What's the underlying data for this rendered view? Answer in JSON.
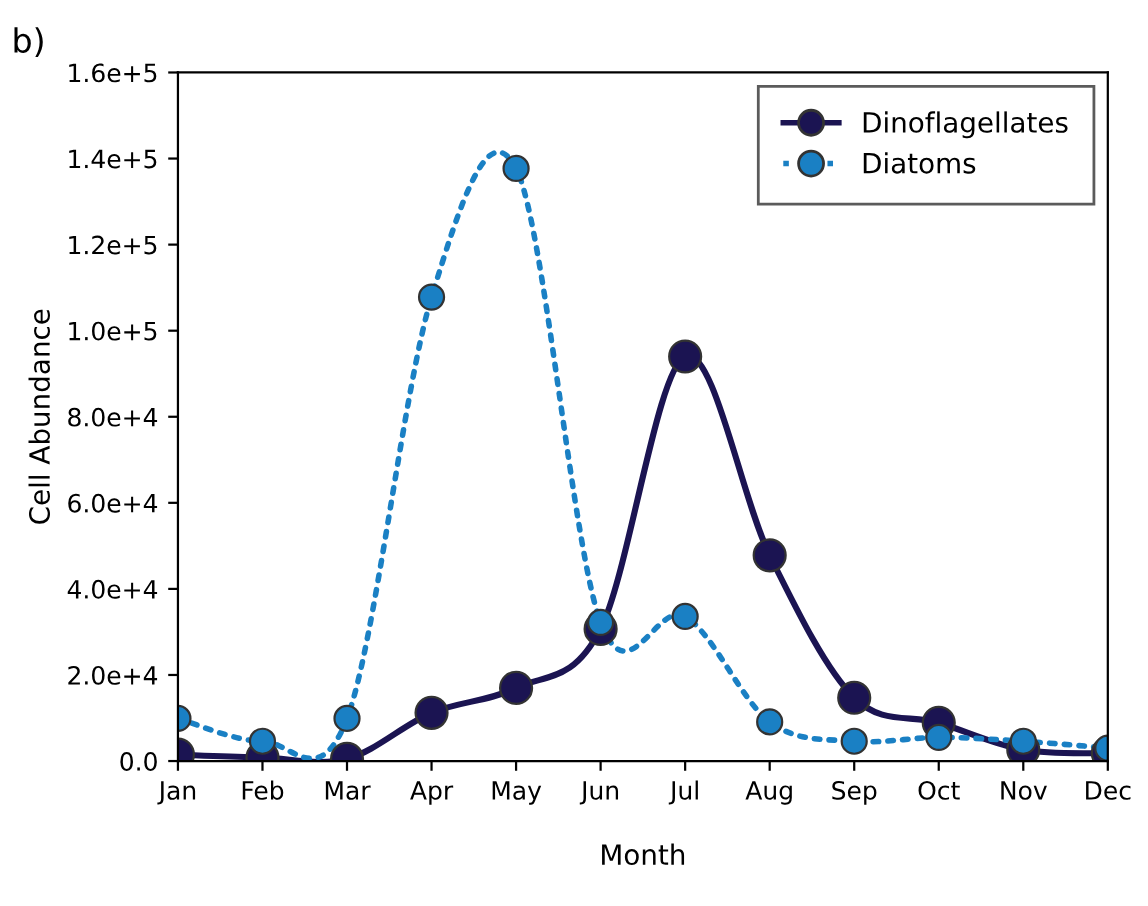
{
  "chart_data": {
    "type": "line",
    "title": "b)",
    "xlabel": "Month",
    "ylabel": "Cell Abundance",
    "categories": [
      "Jan",
      "Feb",
      "Mar",
      "Apr",
      "May",
      "Jun",
      "Jul",
      "Aug",
      "Sep",
      "Oct",
      "Nov",
      "Dec"
    ],
    "series": [
      {
        "name": "Dinoflagellates",
        "color": "#1b1452",
        "line_style": "solid",
        "values": [
          1500,
          800,
          500,
          11200,
          17000,
          30700,
          94000,
          47800,
          14700,
          8900,
          2600,
          1800
        ]
      },
      {
        "name": "Diatoms",
        "color": "#1a80c4",
        "line_style": "dotted",
        "values": [
          9900,
          4600,
          9900,
          107800,
          137700,
          32200,
          33600,
          9100,
          4600,
          5500,
          4600,
          3000
        ]
      }
    ],
    "ylim": [
      0,
      160000
    ],
    "yticks": [
      {
        "value": 0,
        "label": "0.0"
      },
      {
        "value": 20000,
        "label": "2.0e+4"
      },
      {
        "value": 40000,
        "label": "4.0e+4"
      },
      {
        "value": 60000,
        "label": "6.0e+4"
      },
      {
        "value": 80000,
        "label": "8.0e+4"
      },
      {
        "value": 100000,
        "label": "1.0e+5"
      },
      {
        "value": 120000,
        "label": "1.2e+5"
      },
      {
        "value": 140000,
        "label": "1.4e+5"
      },
      {
        "value": 160000,
        "label": "1.6e+5"
      }
    ],
    "marker": "circle",
    "legend": "top right",
    "grid": false
  }
}
